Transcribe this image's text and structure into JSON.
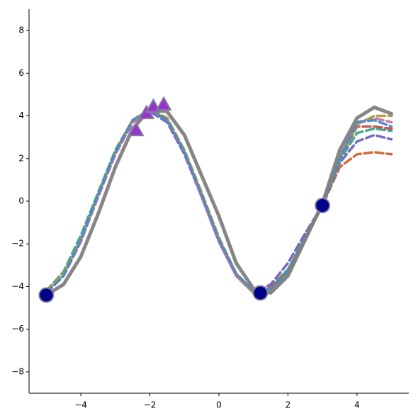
{
  "chart_data": {
    "type": "line",
    "x": [
      -5,
      -4.5,
      -4,
      -3.5,
      -3,
      -2.5,
      -2,
      -1.5,
      -1,
      -0.5,
      0,
      0.5,
      1,
      1.5,
      2,
      2.5,
      3,
      3.5,
      4,
      4.5,
      5
    ],
    "series": [
      {
        "color": "#d2622a",
        "style": "dashed",
        "values": [
          -4.2,
          -3.4,
          -1.8,
          0.3,
          2.3,
          3.8,
          4.3,
          3.8,
          2.3,
          0.3,
          -1.8,
          -3.4,
          -4.2,
          -4.0,
          -3.2,
          -1.7,
          -0.2,
          1.6,
          2.2,
          2.3,
          2.2
        ]
      },
      {
        "color": "#7060c8",
        "style": "dashed",
        "values": [
          -4.3,
          -3.5,
          -1.9,
          0.2,
          2.2,
          3.7,
          4.2,
          3.7,
          2.2,
          0.2,
          -1.9,
          -3.5,
          -4.3,
          -3.9,
          -2.9,
          -1.5,
          -0.2,
          1.8,
          2.8,
          3.1,
          2.9
        ]
      },
      {
        "color": "#3aa58a",
        "style": "dashed",
        "values": [
          -4.2,
          -3.3,
          -1.6,
          0.4,
          2.4,
          3.8,
          4.3,
          3.9,
          2.4,
          0.4,
          -1.7,
          -3.4,
          -4.3,
          -4.1,
          -3.2,
          -1.7,
          -0.2,
          1.9,
          3.2,
          3.4,
          3.3
        ]
      },
      {
        "color": "#c0504d",
        "style": "dashed",
        "values": [
          -4.2,
          -3.4,
          -1.8,
          0.3,
          2.3,
          3.8,
          4.3,
          3.8,
          2.3,
          0.3,
          -1.8,
          -3.4,
          -4.2,
          -4.1,
          -3.3,
          -1.8,
          -0.2,
          2.0,
          3.5,
          3.5,
          3.4
        ]
      },
      {
        "color": "#d070a8",
        "style": "dashed",
        "values": [
          -4.3,
          -3.5,
          -1.9,
          0.2,
          2.2,
          3.7,
          4.3,
          3.8,
          2.3,
          0.2,
          -1.9,
          -3.5,
          -4.3,
          -4.2,
          -3.4,
          -1.8,
          -0.2,
          2.1,
          3.7,
          3.9,
          3.7
        ]
      },
      {
        "color": "#a8a040",
        "style": "dashed",
        "values": [
          -4.2,
          -3.4,
          -1.8,
          0.3,
          2.3,
          3.8,
          4.3,
          3.9,
          2.4,
          0.4,
          -1.7,
          -3.4,
          -4.3,
          -4.2,
          -3.4,
          -1.8,
          -0.2,
          2.0,
          3.6,
          4.0,
          4.0
        ]
      },
      {
        "color": "#4a8ac8",
        "style": "dashed",
        "values": [
          -4.3,
          -3.5,
          -1.8,
          0.3,
          2.3,
          3.8,
          4.3,
          3.8,
          2.3,
          0.3,
          -1.8,
          -3.4,
          -4.2,
          -4.1,
          -3.3,
          -1.8,
          -0.2,
          2.0,
          3.7,
          3.8,
          3.5
        ]
      },
      {
        "color": "#808080",
        "style": "solid",
        "values": [
          -4.4,
          -3.9,
          -2.6,
          -0.6,
          1.6,
          3.4,
          4.3,
          4.2,
          3.1,
          1.2,
          -0.7,
          -2.9,
          -4.1,
          -4.3,
          -3.5,
          -1.8,
          -0.1,
          2.4,
          3.9,
          4.4,
          4.1
        ]
      }
    ],
    "points": {
      "color": "#00008b",
      "x": [
        -5,
        1.2,
        3
      ],
      "values": [
        -4.4,
        -4.3,
        -0.2
      ]
    },
    "triangles": {
      "color": "#9932cc",
      "x": [
        -2.4,
        -2.1,
        -1.9,
        -1.6
      ],
      "values": [
        3.3,
        4.1,
        4.4,
        4.5
      ]
    },
    "xlim": [
      -5.5,
      5.5
    ],
    "ylim": [
      -9,
      9
    ],
    "xticks": [
      {
        "value": -4,
        "label": "−4"
      },
      {
        "value": -2,
        "label": "−2"
      },
      0,
      2,
      4
    ],
    "yticks": [
      {
        "value": -8,
        "label": "−8"
      },
      {
        "value": -6,
        "label": "−6"
      },
      {
        "value": -4,
        "label": "−4"
      },
      {
        "value": -2,
        "label": "−2"
      },
      0,
      2,
      4,
      6,
      8
    ]
  }
}
